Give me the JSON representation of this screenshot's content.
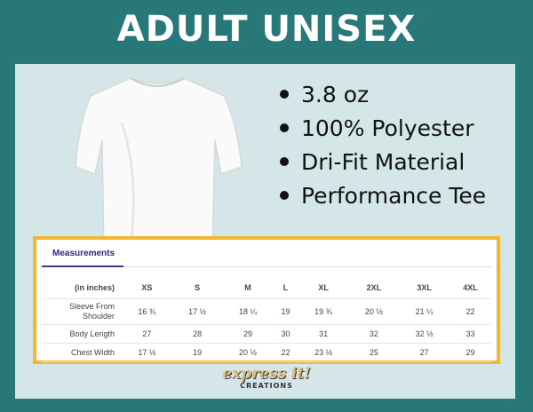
{
  "title": "ADULT UNISEX",
  "features": [
    "3.8 oz",
    "100% Polyester",
    "Dri-Fit Material",
    "Performance Tee"
  ],
  "product_image": "white-short-sleeve-tee",
  "measurements": {
    "tab_label": "Measurements",
    "unit_label": "(in inches)",
    "sizes": [
      "XS",
      "S",
      "M",
      "L",
      "XL",
      "2XL",
      "3XL",
      "4XL"
    ],
    "rows": [
      {
        "label_line1": "Sleeve From",
        "label_line2": "Shoulder",
        "values": [
          "16 ¾",
          "17 ½",
          "18 ¼",
          "19",
          "19 ¾",
          "20 ½",
          "21 ¼",
          "22"
        ]
      },
      {
        "label": "Body Length",
        "values": [
          "27",
          "28",
          "29",
          "30",
          "31",
          "32",
          "32 ½",
          "33"
        ]
      },
      {
        "label": "Chest Width",
        "values": [
          "17 ½",
          "19",
          "20 ½",
          "22",
          "23 ½",
          "25",
          "27",
          "29"
        ]
      }
    ]
  },
  "logo": {
    "line1": "express it!",
    "line2": "CREATIONS"
  },
  "colors": {
    "background": "#287779",
    "panel": "#d5e6e8",
    "table_border": "#f4b731",
    "tab_accent": "#3b3b8c"
  }
}
